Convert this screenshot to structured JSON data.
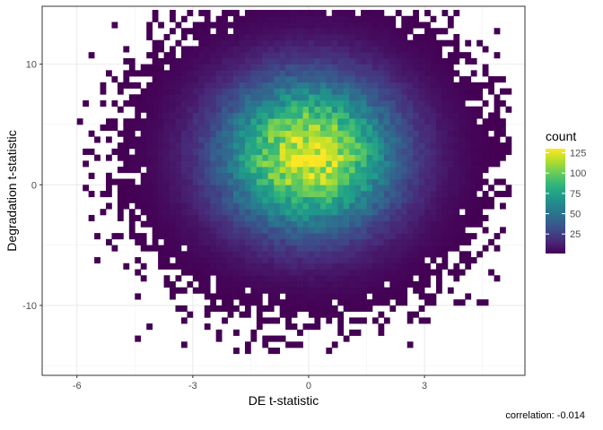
{
  "chart_data": {
    "type": "heatmap",
    "subtype": "2d-histogram",
    "theme": "bw",
    "grid": true,
    "xlabel": "DE t-statistic",
    "ylabel": "Degradation t-statistic",
    "xlim": [
      -6.9,
      5.6
    ],
    "ylim": [
      -15.8,
      14.8
    ],
    "xticks": [
      -6,
      -3,
      0,
      3
    ],
    "yticks": [
      -10,
      0,
      10
    ],
    "xtick_labels": [
      "-6",
      "-3",
      "0",
      "3"
    ],
    "ytick_labels": [
      "-10",
      "0",
      "10"
    ],
    "bins": {
      "x_width": 0.15,
      "y_width": 0.5
    },
    "density_model": {
      "distribution": "bivariate-normal",
      "center": [
        0.0,
        2.5
      ],
      "sd": [
        1.55,
        4.3
      ],
      "peak_count": 125,
      "correlation": -0.014
    },
    "legend": {
      "title": "count",
      "position": "right",
      "ticks": [
        25,
        50,
        75,
        100,
        125
      ],
      "tick_labels": [
        "25",
        "50",
        "75",
        "100",
        "125"
      ],
      "range": [
        1,
        130
      ],
      "colormap": "viridis",
      "colors": [
        "#440154",
        "#482878",
        "#3e4a89",
        "#31688e",
        "#26828e",
        "#1f9e89",
        "#35b779",
        "#6ece58",
        "#b5de2b",
        "#fde725"
      ]
    },
    "annotation": "correlation: -0.014"
  }
}
